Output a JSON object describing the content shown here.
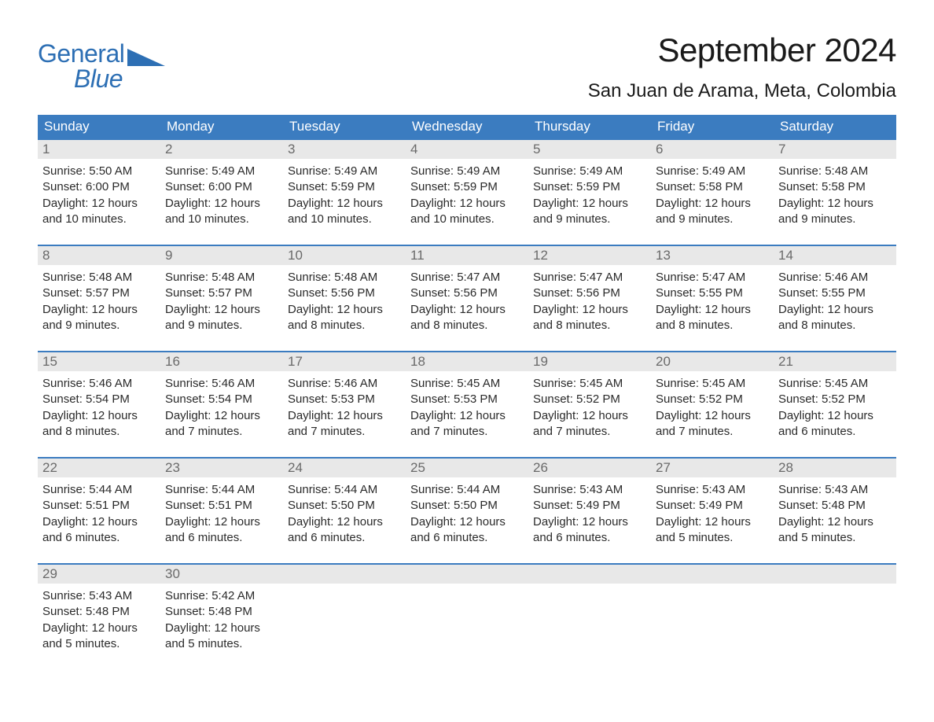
{
  "brand": {
    "word1": "General",
    "word2": "Blue",
    "color": "#2d6fb4"
  },
  "title": "September 2024",
  "location": "San Juan de Arama, Meta, Colombia",
  "colors": {
    "header_bg": "#3b7cc0",
    "header_text": "#ffffff",
    "daynum_bg": "#e8e8e8",
    "daynum_text": "#6a6a6a",
    "body_text": "#2a2a2a",
    "page_bg": "#ffffff",
    "week_border": "#3b7cc0"
  },
  "typography": {
    "title_fontsize": 42,
    "location_fontsize": 24,
    "weekday_fontsize": 17,
    "body_fontsize": 15,
    "font_family": "Arial"
  },
  "layout": {
    "columns": 7,
    "weeks": 5,
    "cell_lines": 4
  },
  "weekdays": [
    "Sunday",
    "Monday",
    "Tuesday",
    "Wednesday",
    "Thursday",
    "Friday",
    "Saturday"
  ],
  "weeks": [
    {
      "days": [
        {
          "num": "1",
          "sunrise": "Sunrise: 5:50 AM",
          "sunset": "Sunset: 6:00 PM",
          "d1": "Daylight: 12 hours",
          "d2": "and 10 minutes."
        },
        {
          "num": "2",
          "sunrise": "Sunrise: 5:49 AM",
          "sunset": "Sunset: 6:00 PM",
          "d1": "Daylight: 12 hours",
          "d2": "and 10 minutes."
        },
        {
          "num": "3",
          "sunrise": "Sunrise: 5:49 AM",
          "sunset": "Sunset: 5:59 PM",
          "d1": "Daylight: 12 hours",
          "d2": "and 10 minutes."
        },
        {
          "num": "4",
          "sunrise": "Sunrise: 5:49 AM",
          "sunset": "Sunset: 5:59 PM",
          "d1": "Daylight: 12 hours",
          "d2": "and 10 minutes."
        },
        {
          "num": "5",
          "sunrise": "Sunrise: 5:49 AM",
          "sunset": "Sunset: 5:59 PM",
          "d1": "Daylight: 12 hours",
          "d2": "and 9 minutes."
        },
        {
          "num": "6",
          "sunrise": "Sunrise: 5:49 AM",
          "sunset": "Sunset: 5:58 PM",
          "d1": "Daylight: 12 hours",
          "d2": "and 9 minutes."
        },
        {
          "num": "7",
          "sunrise": "Sunrise: 5:48 AM",
          "sunset": "Sunset: 5:58 PM",
          "d1": "Daylight: 12 hours",
          "d2": "and 9 minutes."
        }
      ]
    },
    {
      "days": [
        {
          "num": "8",
          "sunrise": "Sunrise: 5:48 AM",
          "sunset": "Sunset: 5:57 PM",
          "d1": "Daylight: 12 hours",
          "d2": "and 9 minutes."
        },
        {
          "num": "9",
          "sunrise": "Sunrise: 5:48 AM",
          "sunset": "Sunset: 5:57 PM",
          "d1": "Daylight: 12 hours",
          "d2": "and 9 minutes."
        },
        {
          "num": "10",
          "sunrise": "Sunrise: 5:48 AM",
          "sunset": "Sunset: 5:56 PM",
          "d1": "Daylight: 12 hours",
          "d2": "and 8 minutes."
        },
        {
          "num": "11",
          "sunrise": "Sunrise: 5:47 AM",
          "sunset": "Sunset: 5:56 PM",
          "d1": "Daylight: 12 hours",
          "d2": "and 8 minutes."
        },
        {
          "num": "12",
          "sunrise": "Sunrise: 5:47 AM",
          "sunset": "Sunset: 5:56 PM",
          "d1": "Daylight: 12 hours",
          "d2": "and 8 minutes."
        },
        {
          "num": "13",
          "sunrise": "Sunrise: 5:47 AM",
          "sunset": "Sunset: 5:55 PM",
          "d1": "Daylight: 12 hours",
          "d2": "and 8 minutes."
        },
        {
          "num": "14",
          "sunrise": "Sunrise: 5:46 AM",
          "sunset": "Sunset: 5:55 PM",
          "d1": "Daylight: 12 hours",
          "d2": "and 8 minutes."
        }
      ]
    },
    {
      "days": [
        {
          "num": "15",
          "sunrise": "Sunrise: 5:46 AM",
          "sunset": "Sunset: 5:54 PM",
          "d1": "Daylight: 12 hours",
          "d2": "and 8 minutes."
        },
        {
          "num": "16",
          "sunrise": "Sunrise: 5:46 AM",
          "sunset": "Sunset: 5:54 PM",
          "d1": "Daylight: 12 hours",
          "d2": "and 7 minutes."
        },
        {
          "num": "17",
          "sunrise": "Sunrise: 5:46 AM",
          "sunset": "Sunset: 5:53 PM",
          "d1": "Daylight: 12 hours",
          "d2": "and 7 minutes."
        },
        {
          "num": "18",
          "sunrise": "Sunrise: 5:45 AM",
          "sunset": "Sunset: 5:53 PM",
          "d1": "Daylight: 12 hours",
          "d2": "and 7 minutes."
        },
        {
          "num": "19",
          "sunrise": "Sunrise: 5:45 AM",
          "sunset": "Sunset: 5:52 PM",
          "d1": "Daylight: 12 hours",
          "d2": "and 7 minutes."
        },
        {
          "num": "20",
          "sunrise": "Sunrise: 5:45 AM",
          "sunset": "Sunset: 5:52 PM",
          "d1": "Daylight: 12 hours",
          "d2": "and 7 minutes."
        },
        {
          "num": "21",
          "sunrise": "Sunrise: 5:45 AM",
          "sunset": "Sunset: 5:52 PM",
          "d1": "Daylight: 12 hours",
          "d2": "and 6 minutes."
        }
      ]
    },
    {
      "days": [
        {
          "num": "22",
          "sunrise": "Sunrise: 5:44 AM",
          "sunset": "Sunset: 5:51 PM",
          "d1": "Daylight: 12 hours",
          "d2": "and 6 minutes."
        },
        {
          "num": "23",
          "sunrise": "Sunrise: 5:44 AM",
          "sunset": "Sunset: 5:51 PM",
          "d1": "Daylight: 12 hours",
          "d2": "and 6 minutes."
        },
        {
          "num": "24",
          "sunrise": "Sunrise: 5:44 AM",
          "sunset": "Sunset: 5:50 PM",
          "d1": "Daylight: 12 hours",
          "d2": "and 6 minutes."
        },
        {
          "num": "25",
          "sunrise": "Sunrise: 5:44 AM",
          "sunset": "Sunset: 5:50 PM",
          "d1": "Daylight: 12 hours",
          "d2": "and 6 minutes."
        },
        {
          "num": "26",
          "sunrise": "Sunrise: 5:43 AM",
          "sunset": "Sunset: 5:49 PM",
          "d1": "Daylight: 12 hours",
          "d2": "and 6 minutes."
        },
        {
          "num": "27",
          "sunrise": "Sunrise: 5:43 AM",
          "sunset": "Sunset: 5:49 PM",
          "d1": "Daylight: 12 hours",
          "d2": "and 5 minutes."
        },
        {
          "num": "28",
          "sunrise": "Sunrise: 5:43 AM",
          "sunset": "Sunset: 5:48 PM",
          "d1": "Daylight: 12 hours",
          "d2": "and 5 minutes."
        }
      ]
    },
    {
      "days": [
        {
          "num": "29",
          "sunrise": "Sunrise: 5:43 AM",
          "sunset": "Sunset: 5:48 PM",
          "d1": "Daylight: 12 hours",
          "d2": "and 5 minutes."
        },
        {
          "num": "30",
          "sunrise": "Sunrise: 5:42 AM",
          "sunset": "Sunset: 5:48 PM",
          "d1": "Daylight: 12 hours",
          "d2": "and 5 minutes."
        },
        {
          "num": "",
          "sunrise": "",
          "sunset": "",
          "d1": "",
          "d2": ""
        },
        {
          "num": "",
          "sunrise": "",
          "sunset": "",
          "d1": "",
          "d2": ""
        },
        {
          "num": "",
          "sunrise": "",
          "sunset": "",
          "d1": "",
          "d2": ""
        },
        {
          "num": "",
          "sunrise": "",
          "sunset": "",
          "d1": "",
          "d2": ""
        },
        {
          "num": "",
          "sunrise": "",
          "sunset": "",
          "d1": "",
          "d2": ""
        }
      ]
    }
  ]
}
